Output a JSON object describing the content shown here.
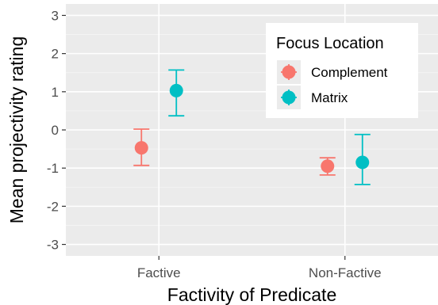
{
  "chart_data": {
    "type": "scatter",
    "xlabel": "Factivity of Predicate",
    "ylabel": "Mean projectivity rating",
    "categories": [
      "Factive",
      "Non-Factive"
    ],
    "ylim": [
      -3.3,
      3.3
    ],
    "yticks": [
      -3,
      -2,
      -1,
      0,
      1,
      2,
      3
    ],
    "ytick_labels": [
      "-3",
      "-2",
      "-1",
      "0",
      "1",
      "2",
      "3"
    ],
    "grid": true,
    "legend": {
      "title": "Focus Location",
      "position": "top-right"
    },
    "series": [
      {
        "name": "Complement",
        "color": "#F8766D",
        "values": [
          -0.47,
          -0.95
        ],
        "lower": [
          -0.93,
          -1.18
        ],
        "upper": [
          0.02,
          -0.73
        ]
      },
      {
        "name": "Matrix",
        "color": "#00BFC4",
        "values": [
          1.03,
          -0.85
        ],
        "lower": [
          0.37,
          -1.43
        ],
        "upper": [
          1.57,
          -0.12
        ]
      }
    ]
  }
}
